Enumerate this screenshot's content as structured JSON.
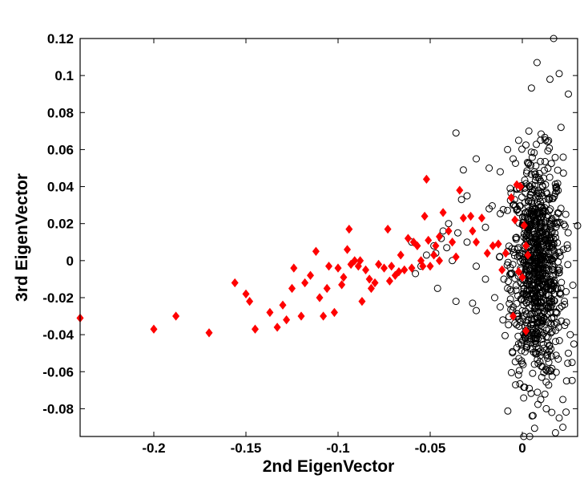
{
  "chart_data": {
    "type": "scatter",
    "title": "",
    "xlabel": "2nd EigenVector",
    "ylabel": "3rd EigenVector",
    "xlim": [
      -0.24,
      0.03
    ],
    "ylim": [
      -0.095,
      0.12
    ],
    "xticks": [
      "-0.2",
      "-0.15",
      "-0.1",
      "-0.05",
      "0"
    ],
    "xtick_values": [
      -0.2,
      -0.15,
      -0.1,
      -0.05,
      0
    ],
    "yticks": [
      "-0.08",
      "-0.06",
      "-0.04",
      "-0.02",
      "0",
      "0.02",
      "0.04",
      "0.06",
      "0.08",
      "0.1",
      "0.12"
    ],
    "ytick_values": [
      -0.08,
      -0.06,
      -0.04,
      -0.02,
      0,
      0.02,
      0.04,
      0.06,
      0.08,
      0.1,
      0.12
    ],
    "grid": false,
    "legend": "none",
    "series": [
      {
        "marker": "circle-open",
        "color": "#000000",
        "cluster": {
          "center_x": 0.008,
          "center_y": -0.005,
          "sd_x": 0.007,
          "sd_y": 0.03,
          "count": 900
        },
        "points": [
          [
            0.017,
            0.12
          ],
          [
            0.008,
            0.107
          ],
          [
            0.02,
            0.101
          ],
          [
            0.015,
            0.098
          ],
          [
            -0.036,
            0.069
          ],
          [
            -0.032,
            0.049
          ],
          [
            -0.025,
            0.055
          ],
          [
            -0.03,
            0.035
          ],
          [
            -0.033,
            0.033
          ],
          [
            -0.018,
            0.05
          ],
          [
            -0.012,
            0.048
          ],
          [
            -0.018,
            0.028
          ],
          [
            -0.02,
            0.018
          ],
          [
            -0.03,
            0.01
          ],
          [
            -0.035,
            0.015
          ],
          [
            -0.04,
            0.02
          ],
          [
            -0.044,
            0.012
          ],
          [
            -0.041,
            0.007
          ],
          [
            -0.047,
            0.004
          ],
          [
            -0.052,
            0.003
          ],
          [
            -0.055,
            -0.003
          ],
          [
            -0.058,
            -0.007
          ],
          [
            -0.046,
            -0.015
          ],
          [
            -0.036,
            -0.022
          ],
          [
            -0.038,
            0.0
          ],
          [
            -0.025,
            -0.003
          ],
          [
            -0.02,
            -0.01
          ],
          [
            -0.027,
            -0.023
          ],
          [
            -0.025,
            -0.027
          ],
          [
            -0.015,
            -0.02
          ],
          [
            -0.012,
            -0.025
          ],
          [
            -0.01,
            -0.01
          ],
          [
            -0.008,
            0.005
          ],
          [
            -0.043,
            0.016
          ],
          [
            -0.005,
            0.03
          ],
          [
            -0.005,
            0.055
          ],
          [
            -0.002,
            0.065
          ],
          [
            -0.008,
            0.06
          ],
          [
            0.021,
            0.072
          ],
          [
            0.025,
            0.09
          ],
          [
            0.023,
            -0.035
          ],
          [
            0.025,
            -0.05
          ],
          [
            0.024,
            -0.065
          ],
          [
            0.022,
            -0.075
          ],
          [
            0.02,
            -0.085
          ],
          [
            0.022,
            -0.09
          ],
          [
            0.018,
            -0.093
          ],
          [
            0.026,
            -0.04
          ],
          [
            0.027,
            -0.055
          ],
          [
            0.028,
            -0.045
          ],
          [
            -0.003,
            -0.03
          ],
          [
            -0.005,
            -0.025
          ],
          [
            -0.008,
            -0.015
          ],
          [
            -0.06,
            0.01
          ],
          [
            -0.048,
            0.008
          ],
          [
            0.013,
            -0.08
          ],
          [
            0.01,
            -0.075
          ],
          [
            0.016,
            -0.082
          ]
        ]
      },
      {
        "marker": "diamond-filled",
        "color": "#ff0000",
        "points": [
          [
            -0.24,
            -0.031
          ],
          [
            -0.2,
            -0.037
          ],
          [
            -0.188,
            -0.03
          ],
          [
            -0.17,
            -0.039
          ],
          [
            -0.156,
            -0.012
          ],
          [
            -0.15,
            -0.018
          ],
          [
            -0.148,
            -0.022
          ],
          [
            -0.145,
            -0.037
          ],
          [
            -0.137,
            -0.028
          ],
          [
            -0.133,
            -0.036
          ],
          [
            -0.13,
            -0.024
          ],
          [
            -0.128,
            -0.032
          ],
          [
            -0.125,
            -0.015
          ],
          [
            -0.124,
            -0.004
          ],
          [
            -0.12,
            -0.03
          ],
          [
            -0.118,
            -0.012
          ],
          [
            -0.115,
            -0.008
          ],
          [
            -0.112,
            0.005
          ],
          [
            -0.11,
            -0.02
          ],
          [
            -0.108,
            -0.03
          ],
          [
            -0.106,
            -0.015
          ],
          [
            -0.105,
            -0.003
          ],
          [
            -0.102,
            -0.028
          ],
          [
            -0.1,
            -0.004
          ],
          [
            -0.098,
            -0.013
          ],
          [
            -0.097,
            -0.009
          ],
          [
            -0.095,
            0.006
          ],
          [
            -0.094,
            0.017
          ],
          [
            -0.093,
            -0.002
          ],
          [
            -0.091,
            0.0
          ],
          [
            -0.089,
            -0.003
          ],
          [
            -0.088,
            0.0
          ],
          [
            -0.087,
            -0.022
          ],
          [
            -0.085,
            -0.005
          ],
          [
            -0.083,
            -0.01
          ],
          [
            -0.082,
            -0.015
          ],
          [
            -0.08,
            -0.012
          ],
          [
            -0.078,
            -0.002
          ],
          [
            -0.075,
            -0.004
          ],
          [
            -0.073,
            0.017
          ],
          [
            -0.072,
            -0.011
          ],
          [
            -0.071,
            -0.003
          ],
          [
            -0.069,
            -0.008
          ],
          [
            -0.067,
            -0.006
          ],
          [
            -0.066,
            0.003
          ],
          [
            -0.064,
            -0.005
          ],
          [
            -0.062,
            0.012
          ],
          [
            -0.06,
            -0.004
          ],
          [
            -0.059,
            0.01
          ],
          [
            -0.057,
            0.008
          ],
          [
            -0.055,
            0.0
          ],
          [
            -0.054,
            -0.003
          ],
          [
            -0.053,
            0.024
          ],
          [
            -0.051,
            0.011
          ],
          [
            -0.05,
            -0.003
          ],
          [
            -0.048,
            0.003
          ],
          [
            -0.047,
            0.008
          ],
          [
            -0.045,
            0.0
          ],
          [
            -0.043,
            0.026
          ],
          [
            -0.04,
            0.016
          ],
          [
            -0.038,
            0.01
          ],
          [
            -0.036,
            0.002
          ],
          [
            -0.034,
            0.038
          ],
          [
            -0.032,
            0.023
          ],
          [
            -0.028,
            0.024
          ],
          [
            -0.027,
            0.016
          ],
          [
            -0.025,
            0.01
          ],
          [
            -0.022,
            0.023
          ],
          [
            -0.019,
            0.004
          ],
          [
            -0.016,
            0.008
          ],
          [
            -0.013,
            0.009
          ],
          [
            -0.011,
            -0.005
          ],
          [
            -0.009,
            0.004
          ],
          [
            -0.006,
            0.034
          ],
          [
            -0.004,
            0.022
          ],
          [
            -0.003,
            0.041
          ],
          [
            -0.001,
            0.04
          ],
          [
            0.001,
            0.019
          ],
          [
            0.002,
            0.008
          ],
          [
            0.003,
            0.003
          ],
          [
            -0.002,
            -0.006
          ],
          [
            0.0,
            -0.009
          ],
          [
            -0.005,
            -0.03
          ],
          [
            0.002,
            -0.038
          ],
          [
            -0.052,
            0.044
          ],
          [
            -0.045,
            0.013
          ]
        ]
      }
    ]
  },
  "colors": {
    "background": "#ffffff",
    "axis": "#000000",
    "open_marker": "#000000",
    "filled_marker": "#ff0000"
  }
}
